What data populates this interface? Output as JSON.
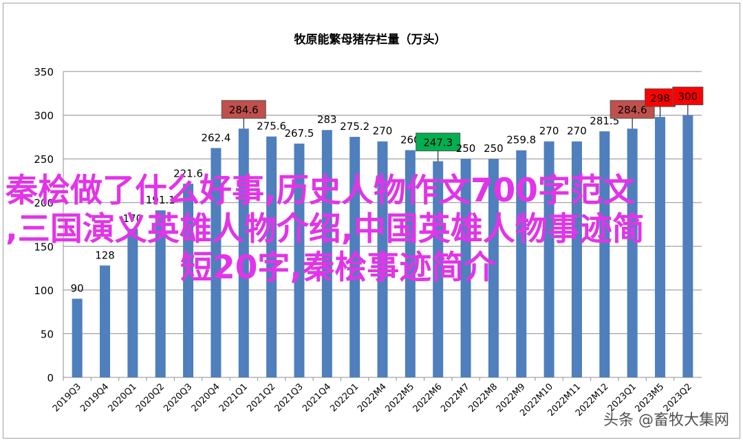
{
  "chart_data": {
    "type": "bar",
    "title": "牧原能繁母猪存栏量（万头）",
    "categories": [
      "2019Q3",
      "2019Q4",
      "2020Q1",
      "2020Q2",
      "2020Q3",
      "2020Q4",
      "2021Q1",
      "2021Q2",
      "2021Q3",
      "2021Q4",
      "2022Q1",
      "2022M4",
      "2022M5",
      "2022M6",
      "2022M7",
      "2022M8",
      "2022M9",
      "2022M10",
      "2022M11",
      "2022M12",
      "2023Q1",
      "2023M5",
      "2023Q2"
    ],
    "values": [
      90,
      128,
      170,
      191.1,
      221.6,
      262.4,
      284.6,
      275.6,
      267.5,
      283,
      275.2,
      270,
      260,
      247.3,
      250,
      250,
      259.8,
      270,
      270,
      281.5,
      284.6,
      298,
      300
    ],
    "ylim": [
      0,
      350
    ],
    "yticks": [
      0,
      50,
      100,
      150,
      200,
      250,
      300,
      350
    ],
    "bar_color": "#4f7fbd",
    "highlights": [
      {
        "index": 6,
        "color": "#c0504d"
      },
      {
        "index": 13,
        "color": "#00b050"
      },
      {
        "index": 20,
        "color": "#c0504d"
      },
      {
        "index": 21,
        "color": "#ff0000"
      },
      {
        "index": 22,
        "color": "#ff0000"
      }
    ],
    "grid": true,
    "xlabel": "",
    "ylabel": ""
  },
  "overlay_text": [
    "秦桧做了什么好事,历史人物作文700字范文",
    ",三国演义英雄人物介绍,中国英雄人物事迹简",
    "短20字,秦桧事迹简介"
  ],
  "watermark": "头条 @畜牧大集网"
}
